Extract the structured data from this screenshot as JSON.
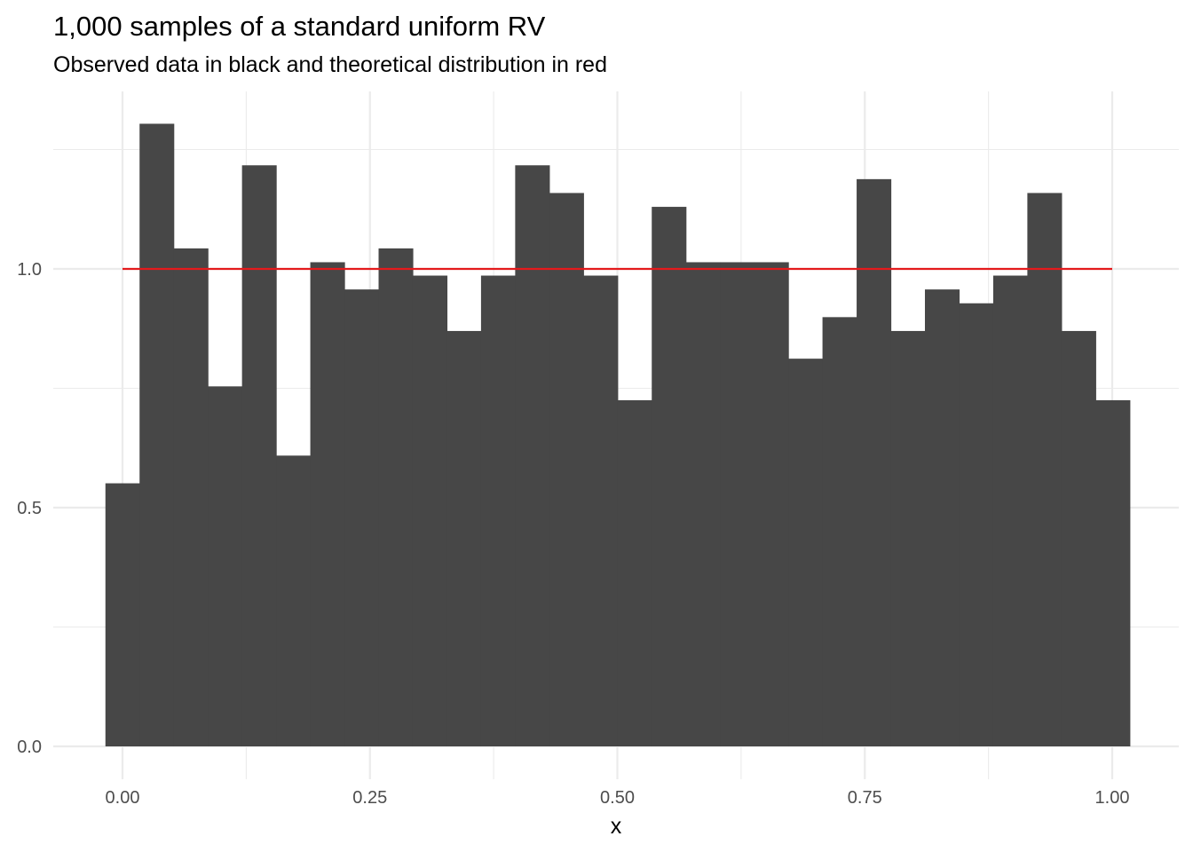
{
  "chart_data": {
    "type": "bar",
    "title": "1,000 samples of a standard uniform RV",
    "subtitle": "Observed data in black and theoretical distribution in red",
    "xlabel": "x",
    "ylabel": "",
    "xlim": [
      -0.0345,
      1.0345
    ],
    "ylim": [
      -0.0655,
      1.375
    ],
    "x_ticks": [
      0.0,
      0.25,
      0.5,
      0.75,
      1.0
    ],
    "x_tick_labels": [
      "0.00",
      "0.25",
      "0.50",
      "0.75",
      "1.00"
    ],
    "y_ticks": [
      0.0,
      0.5,
      1.0
    ],
    "y_tick_labels": [
      "0.0",
      "0.5",
      "1.0"
    ],
    "x_minor_gridlines": [
      0.125,
      0.375,
      0.625,
      0.875
    ],
    "y_minor_gridlines": [
      0.25,
      0.75,
      1.25
    ],
    "grid": true,
    "histogram": {
      "bin_width": 0.0345,
      "first_bin_start": -0.01725,
      "values": [
        0.551,
        1.304,
        1.043,
        0.754,
        1.217,
        0.609,
        1.014,
        0.957,
        1.043,
        0.986,
        0.87,
        0.986,
        1.217,
        1.159,
        0.986,
        0.725,
        1.13,
        1.014,
        1.014,
        1.014,
        0.812,
        0.899,
        1.188,
        0.87,
        0.957,
        0.928,
        0.986,
        1.159,
        0.87,
        0.725
      ],
      "color": "#474747"
    },
    "theoretical_line": {
      "x": [
        0.0,
        1.0
      ],
      "y": [
        1.0,
        1.0
      ],
      "color": "#e41a1c"
    },
    "colors": {
      "grid": "#ebebeb",
      "background": "#ffffff"
    }
  }
}
